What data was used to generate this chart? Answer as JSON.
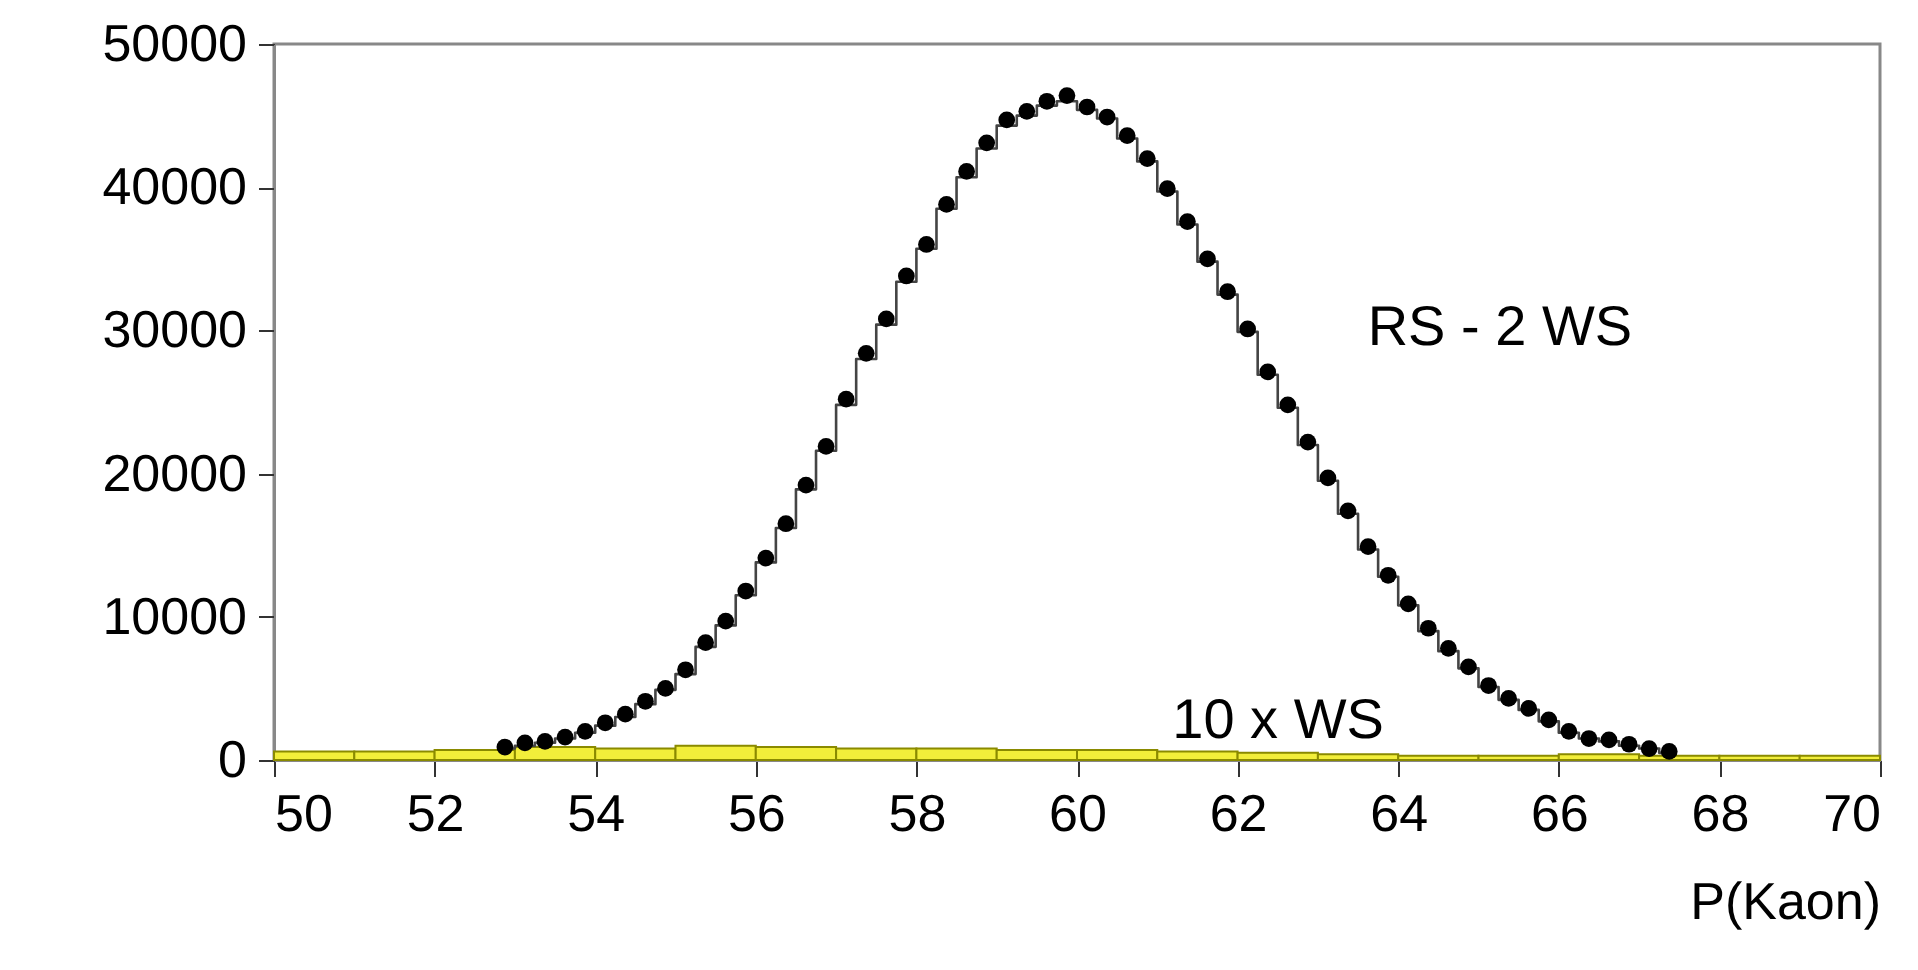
{
  "chart_data": {
    "type": "scatter",
    "xlabel": "P(Kaon)",
    "xlim": [
      50,
      70
    ],
    "xticks": [
      50,
      52,
      54,
      56,
      58,
      60,
      62,
      64,
      66,
      68,
      70
    ],
    "ylim": [
      0,
      50000
    ],
    "yticks": [
      0,
      10000,
      20000,
      30000,
      40000,
      50000
    ],
    "grid": false,
    "marker": "circle",
    "series": [
      {
        "type": "histogram",
        "name": "10 x WS",
        "color": "#f2ee3a",
        "bins": [
          50,
          51,
          52,
          53,
          54,
          55,
          56,
          57,
          58,
          59,
          60,
          61,
          62,
          63,
          64,
          65,
          66,
          67,
          68,
          69,
          70
        ],
        "values": [
          600,
          600,
          700,
          900,
          800,
          1000,
          900,
          800,
          800,
          700,
          700,
          600,
          500,
          400,
          300,
          300,
          400,
          300,
          300,
          300
        ]
      },
      {
        "type": "step",
        "marker": "none",
        "color": "#444444",
        "x": [
          52.875,
          53.125,
          53.375,
          53.625,
          53.875,
          54.125,
          54.375,
          54.625,
          54.875,
          55.125,
          55.375,
          55.625,
          55.875,
          56.125,
          56.375,
          56.625,
          56.875,
          57.125,
          57.375,
          57.625,
          57.875,
          58.125,
          58.375,
          58.625,
          58.875,
          59.125,
          59.375,
          59.625,
          59.875,
          60.125,
          60.375,
          60.625,
          60.875,
          61.125,
          61.375,
          61.625,
          61.875,
          62.125,
          62.375,
          62.625,
          62.875,
          63.125,
          63.375,
          63.625,
          63.875,
          64.125,
          64.375,
          64.625,
          64.875,
          65.125,
          65.375,
          65.625,
          65.875,
          66.125,
          66.375,
          66.625,
          66.875,
          67.125,
          67.375
        ],
        "values": [
          800,
          1000,
          1200,
          1500,
          1900,
          2400,
          3000,
          3900,
          4900,
          6000,
          7900,
          9400,
          11500,
          13800,
          16200,
          18900,
          21600,
          24800,
          28000,
          30400,
          33400,
          35700,
          38500,
          40700,
          42700,
          44300,
          45000,
          45700,
          46000,
          45400,
          44800,
          43400,
          41800,
          39700,
          37400,
          34800,
          32500,
          29900,
          26900,
          24600,
          22000,
          19500,
          17200,
          14700,
          12800,
          10800,
          9000,
          7600,
          6400,
          5100,
          4200,
          3500,
          2700,
          1900,
          1500,
          1300,
          1000,
          800,
          500
        ]
      },
      {
        "name": "RS - 2 WS",
        "color": "#000000",
        "x": [
          52.875,
          53.125,
          53.375,
          53.625,
          53.875,
          54.125,
          54.375,
          54.625,
          54.875,
          55.125,
          55.375,
          55.625,
          55.875,
          56.125,
          56.375,
          56.625,
          56.875,
          57.125,
          57.375,
          57.625,
          57.875,
          58.125,
          58.375,
          58.625,
          58.875,
          59.125,
          59.375,
          59.625,
          59.875,
          60.125,
          60.375,
          60.625,
          60.875,
          61.125,
          61.375,
          61.625,
          61.875,
          62.125,
          62.375,
          62.625,
          62.875,
          63.125,
          63.375,
          63.625,
          63.875,
          64.125,
          64.375,
          64.625,
          64.875,
          65.125,
          65.375,
          65.625,
          65.875,
          66.125,
          66.375,
          66.625,
          66.875,
          67.125,
          67.375
        ],
        "values": [
          900,
          1200,
          1300,
          1600,
          2000,
          2600,
          3200,
          4100,
          5000,
          6300,
          8200,
          9700,
          11800,
          14100,
          16500,
          19200,
          21900,
          25200,
          28400,
          30800,
          33800,
          36000,
          38800,
          41100,
          43100,
          44700,
          45300,
          46000,
          46400,
          45600,
          44900,
          43600,
          42000,
          39900,
          37600,
          35000,
          32700,
          30100,
          27100,
          24800,
          22200,
          19700,
          17400,
          14900,
          12900,
          10900,
          9200,
          7800,
          6500,
          5200,
          4300,
          3600,
          2800,
          2000,
          1500,
          1400,
          1100,
          800,
          600
        ]
      }
    ]
  }
}
